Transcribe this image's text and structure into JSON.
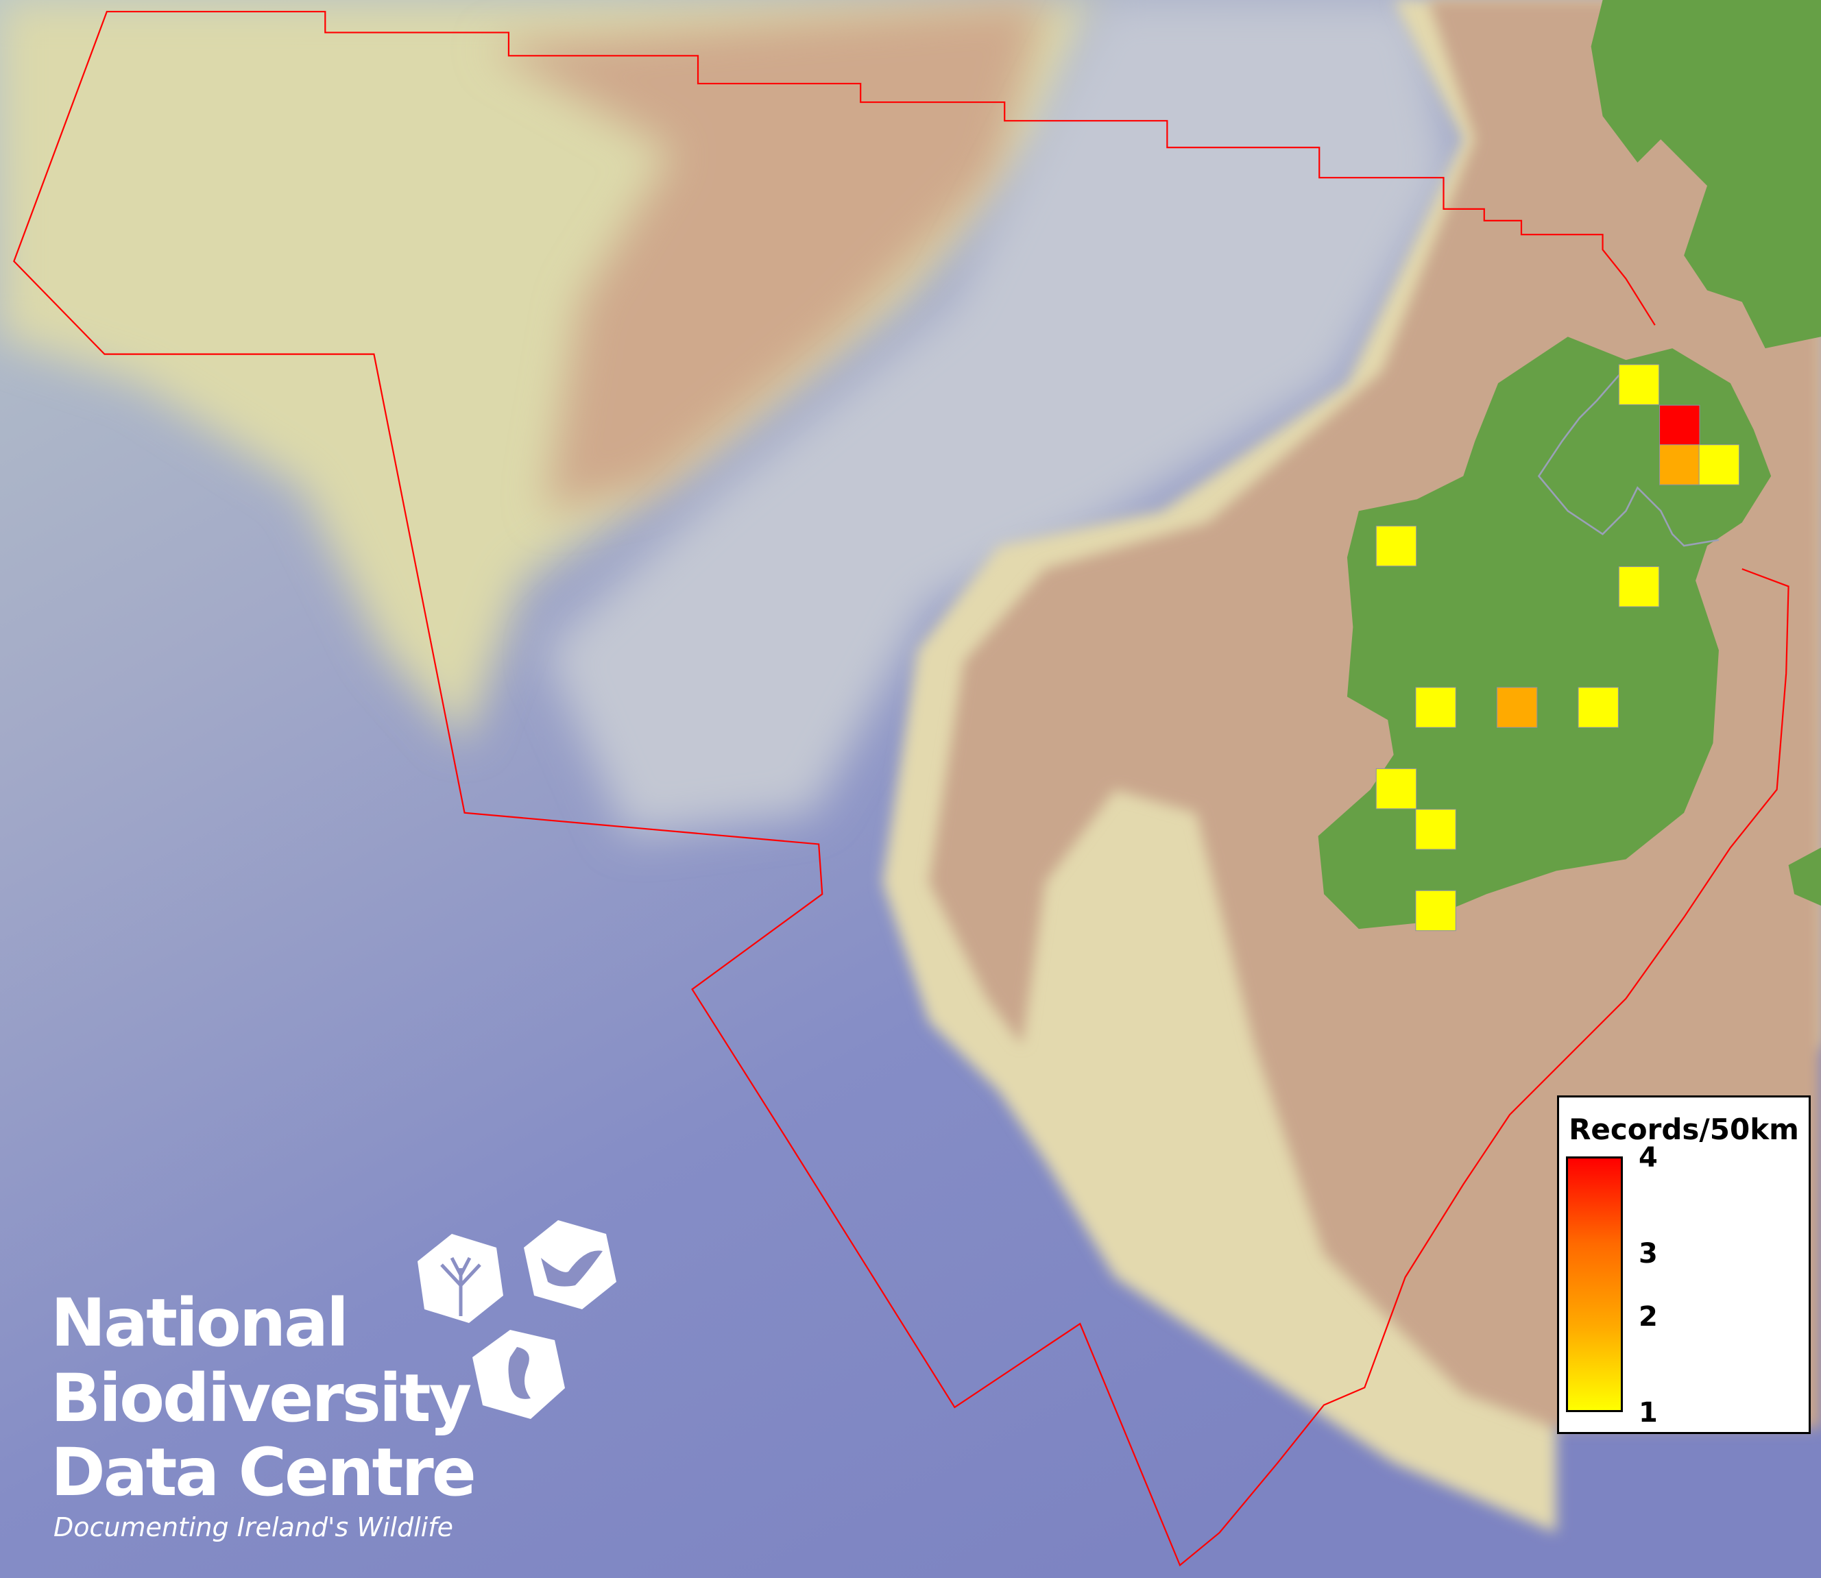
{
  "legend": {
    "title": "Records/50km",
    "ticks": [
      "4",
      "3",
      "2",
      "1"
    ],
    "min": 1,
    "max": 4,
    "color_low": "#ffff00",
    "color_high": "#ff0000"
  },
  "grid_cells": [
    {
      "value": 1,
      "color": "#ffff00"
    },
    {
      "value": 4,
      "color": "#ff0000"
    },
    {
      "value": 2,
      "color": "#ffaa00"
    },
    {
      "value": 1,
      "color": "#ffff00"
    },
    {
      "value": 1,
      "color": "#ffff00"
    },
    {
      "value": 1,
      "color": "#ffff00"
    },
    {
      "value": 1,
      "color": "#ffff00"
    },
    {
      "value": 2,
      "color": "#ffaa00"
    },
    {
      "value": 1,
      "color": "#ffff00"
    },
    {
      "value": 1,
      "color": "#ffff00"
    },
    {
      "value": 1,
      "color": "#ffff00"
    },
    {
      "value": 1,
      "color": "#ffff00"
    }
  ],
  "map": {
    "boundary_color": "#ff0000",
    "land_color": "#66a046",
    "shelf_color": "#c9a68c",
    "deep_sea_color": "#7f86c4"
  },
  "logo": {
    "line1": "National",
    "line2": "Biodiversity",
    "line3": "Data Centre",
    "tagline": "Documenting Ireland's Wildlife",
    "icons": [
      "tree-icon",
      "butterfly-icon",
      "seahorse-icon"
    ]
  }
}
